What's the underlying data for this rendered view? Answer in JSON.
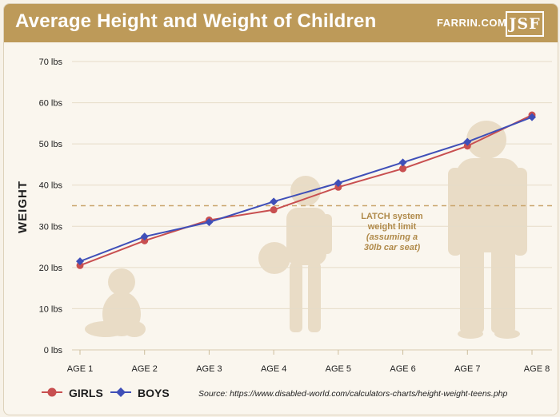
{
  "header": {
    "title": "Average Height and Weight of Children",
    "site": "FARRIN.COM",
    "logo": "JSF"
  },
  "colors": {
    "header_bg": "#bd9a59",
    "girls": "#c84f50",
    "boys": "#3f4fb8",
    "gridline": "#e6dcc8",
    "latch_line": "#c9a46b",
    "silhouette": "#e9dcc6"
  },
  "chart_data": {
    "type": "line",
    "title": "Average Height and Weight of Children",
    "xlabel": "",
    "ylabel": "WEIGHT",
    "categories": [
      "AGE 1",
      "AGE 2",
      "AGE 3",
      "AGE 4",
      "AGE 5",
      "AGE 6",
      "AGE 7",
      "AGE 8"
    ],
    "yticks": [
      "0 lbs",
      "10 lbs",
      "20 lbs",
      "30 lbs",
      "40 lbs",
      "50 lbs",
      "60 lbs",
      "70 lbs"
    ],
    "ylim": [
      0,
      70
    ],
    "grid": true,
    "series": [
      {
        "name": "GIRLS",
        "marker": "circle",
        "values": [
          20.5,
          26.5,
          31.5,
          34,
          39.5,
          44,
          49.5,
          57
        ]
      },
      {
        "name": "BOYS",
        "marker": "diamond",
        "values": [
          21.5,
          27.5,
          31,
          36,
          40.5,
          45.5,
          50.5,
          56.5
        ]
      }
    ],
    "reference_line": {
      "value": 35,
      "label_lines": [
        "LATCH system",
        "weight limit"
      ],
      "note_lines": [
        "(assuming a",
        "30lb car seat)"
      ]
    },
    "legend_position": "bottom-left"
  },
  "source": "Source: https://www.disabled-world.com/calculators-charts/height-weight-teens.php"
}
